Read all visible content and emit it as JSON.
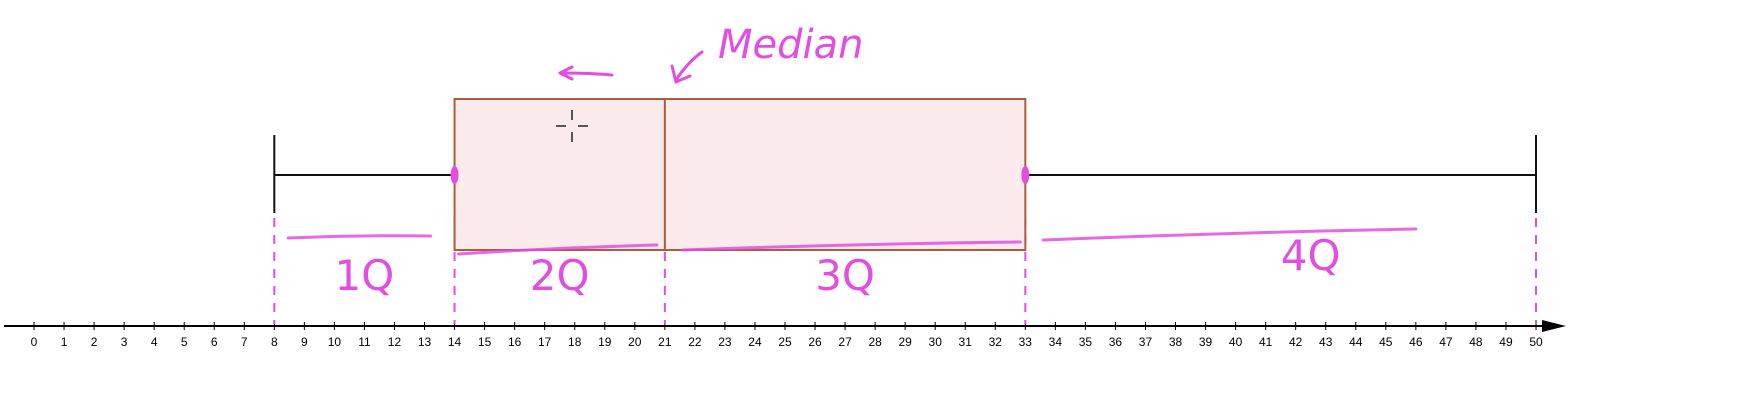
{
  "chart_data": {
    "type": "boxplot",
    "xlim": [
      0,
      50
    ],
    "ticks": [
      0,
      1,
      2,
      3,
      4,
      5,
      6,
      7,
      8,
      9,
      10,
      11,
      12,
      13,
      14,
      15,
      16,
      17,
      18,
      19,
      20,
      21,
      22,
      23,
      24,
      25,
      26,
      27,
      28,
      29,
      30,
      31,
      32,
      33,
      34,
      35,
      36,
      37,
      38,
      39,
      40,
      41,
      42,
      43,
      44,
      45,
      46,
      47,
      48,
      49,
      50
    ],
    "min": 8,
    "q1": 14,
    "median": 21,
    "q3": 33,
    "max": 50,
    "annotations": {
      "median_label": "Median",
      "quartiles": [
        {
          "label": "1Q",
          "from": 8,
          "to": 14
        },
        {
          "label": "2Q",
          "from": 14,
          "to": 21
        },
        {
          "label": "3Q",
          "from": 21,
          "to": 33
        },
        {
          "label": "4Q",
          "from": 33,
          "to": 50
        }
      ]
    }
  },
  "colors": {
    "box_fill": "#fcebed",
    "box_stroke": "#b05a3c",
    "ink": "#e24ee0",
    "axis": "#000000"
  }
}
